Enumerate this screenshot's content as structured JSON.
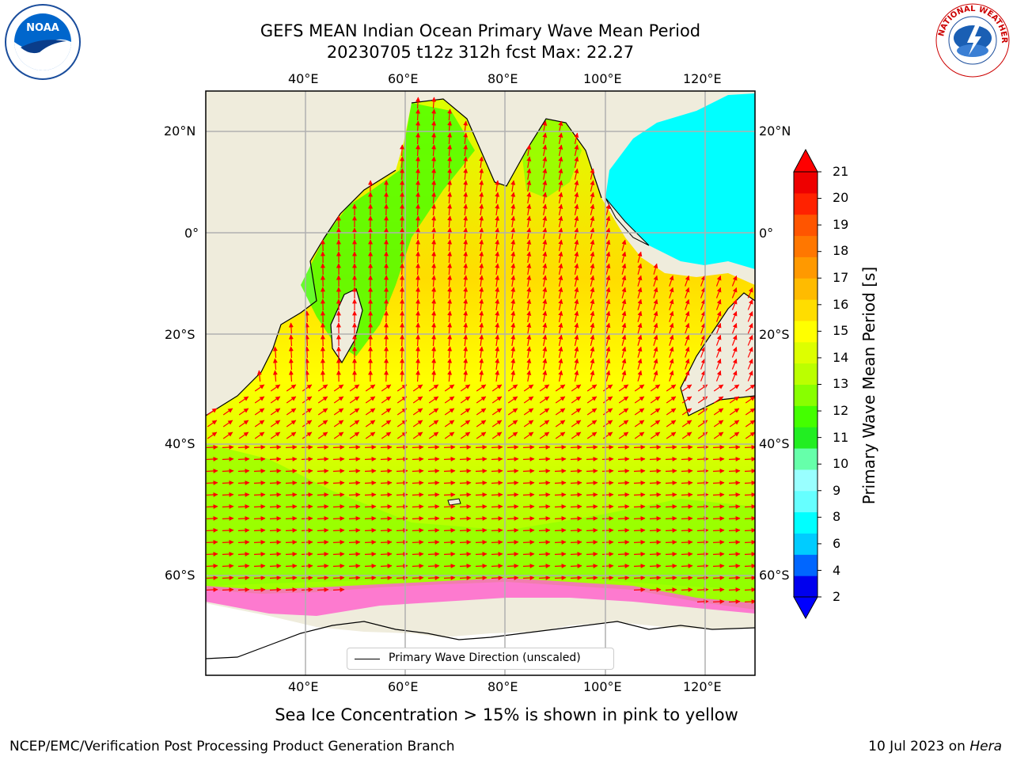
{
  "title": {
    "line1": "GEFS MEAN Indian Ocean Primary Wave Mean Period",
    "line2": "20230705 t12z 312h fcst   Max: 22.27"
  },
  "logos": {
    "left": {
      "name": "NOAA",
      "text": "NOAA"
    },
    "right": {
      "name": "National Weather Service",
      "text": "NATIONAL WEATHER SERVICE"
    }
  },
  "map": {
    "lon_ticks": [
      "40°E",
      "60°E",
      "80°E",
      "100°E",
      "120°E"
    ],
    "lat_ticks": [
      "20°N",
      "0°",
      "20°S",
      "40°S",
      "60°S"
    ],
    "lon_range": [
      20,
      130
    ],
    "lat_range": [
      -75,
      28
    ],
    "gridlines": true,
    "land_color": "#efecdc",
    "arrow_color": "#ff0000",
    "legend": {
      "label": "Primary Wave Direction (unscaled)",
      "placement": "bottom-center"
    }
  },
  "colorbar": {
    "label": "Primary Wave Mean Period [s]",
    "ticks": [
      "21",
      "20",
      "19",
      "18",
      "17",
      "16",
      "15",
      "14",
      "13",
      "12",
      "11",
      "10",
      "9",
      "8",
      "6",
      "4",
      "2"
    ],
    "colors": [
      "#0000ee",
      "#0066ff",
      "#00ccff",
      "#00ffff",
      "#66ffff",
      "#99ffff",
      "#66ffaa",
      "#22ee22",
      "#44ff00",
      "#88ff00",
      "#bbff00",
      "#ddff00",
      "#ffff00",
      "#ffdd00",
      "#ffbb00",
      "#ff9900",
      "#ff7700",
      "#ff5500",
      "#ff2200",
      "#ee0000"
    ],
    "extend": "both"
  },
  "chart_data": {
    "type": "heatmap",
    "variable": "Primary Wave Mean Period",
    "units": "s",
    "max": 22.27,
    "vector_field": "Primary Wave Direction (unscaled)"
  },
  "note": "Sea Ice Concentration > 15% is shown in pink to yellow",
  "footer": {
    "left": "NCEP/EMC/Verification Post Processing Product Generation Branch",
    "right_date": "10 Jul 2023 on ",
    "right_machine": "Hera"
  }
}
